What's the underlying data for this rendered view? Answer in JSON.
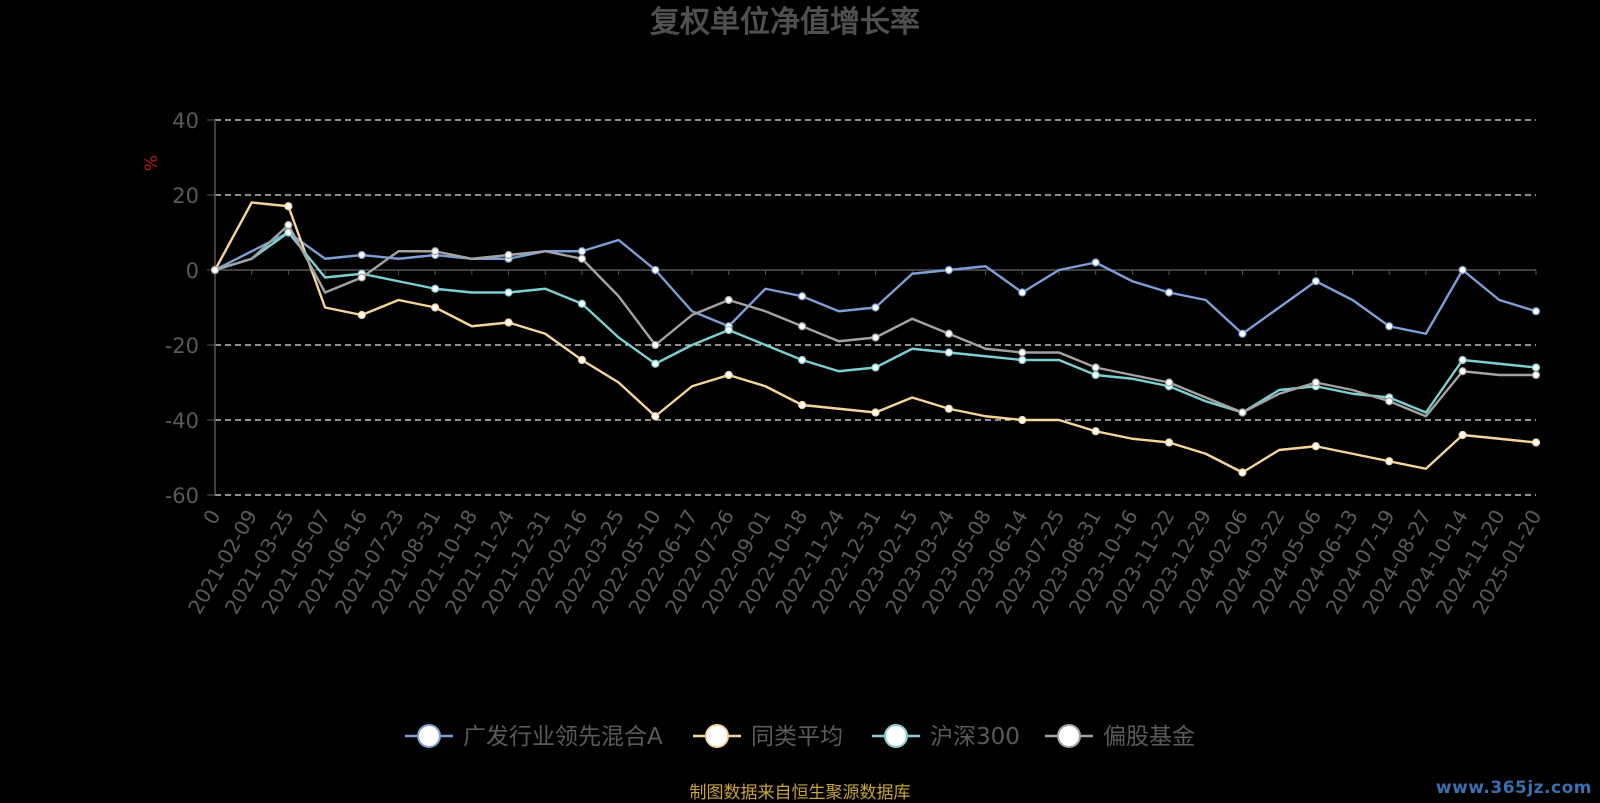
{
  "chart_data": {
    "type": "line",
    "title": "复权单位净值增长率",
    "ylabel": "%",
    "xlabel": "",
    "ylim": [
      -60,
      40
    ],
    "yticks": [
      40,
      20,
      0,
      -20,
      -40,
      -60
    ],
    "grid": true,
    "legend_position": "bottom",
    "categories": [
      "0",
      "2021-02-09",
      "2021-03-25",
      "2021-05-07",
      "2021-06-16",
      "2021-07-23",
      "2021-08-31",
      "2021-10-18",
      "2021-11-24",
      "2021-12-31",
      "2022-02-16",
      "2022-03-25",
      "2022-05-10",
      "2022-06-17",
      "2022-07-26",
      "2022-09-01",
      "2022-10-18",
      "2022-11-24",
      "2022-12-31",
      "2023-02-15",
      "2023-03-24",
      "2023-05-08",
      "2023-06-14",
      "2023-07-25",
      "2023-08-31",
      "2023-10-16",
      "2023-11-22",
      "2023-12-29",
      "2024-02-06",
      "2024-03-22",
      "2024-05-06",
      "2024-06-13",
      "2024-07-19",
      "2024-08-27",
      "2024-10-14",
      "2024-11-20",
      "2025-01-20"
    ],
    "series": [
      {
        "name": "广发行业领先混合A",
        "color": "#7b9fd6",
        "values": [
          0,
          5,
          10,
          3,
          4,
          3,
          4,
          3,
          3,
          5,
          5,
          8,
          0,
          -11,
          -15,
          -5,
          -7,
          -11,
          -10,
          -1,
          0,
          1,
          -6,
          0,
          2,
          -3,
          -6,
          -8,
          -17,
          -10,
          -3,
          -8,
          -15,
          -17,
          0,
          -8,
          -11
        ]
      },
      {
        "name": "同类平均",
        "color": "#f6d59a",
        "values": [
          0,
          18,
          17,
          -10,
          -12,
          -8,
          -10,
          -15,
          -14,
          -17,
          -24,
          -30,
          -39,
          -31,
          -28,
          -31,
          -36,
          -37,
          -38,
          -34,
          -37,
          -39,
          -40,
          -40,
          -43,
          -45,
          -46,
          -49,
          -54,
          -48,
          -47,
          -49,
          -51,
          -53,
          -44,
          -45,
          -46
        ]
      },
      {
        "name": "沪深300",
        "color": "#7dcfd4",
        "values": [
          0,
          3,
          10,
          -2,
          -1,
          -3,
          -5,
          -6,
          -6,
          -5,
          -9,
          -18,
          -25,
          -20,
          -16,
          -20,
          -24,
          -27,
          -26,
          -21,
          -22,
          -23,
          -24,
          -24,
          -28,
          -29,
          -31,
          -35,
          -38,
          -32,
          -31,
          -33,
          -34,
          -38,
          -24,
          -25,
          -26
        ]
      },
      {
        "name": "偏股基金",
        "color": "#a3a3a3",
        "values": [
          0,
          3,
          12,
          -6,
          -2,
          5,
          5,
          3,
          4,
          5,
          3,
          -7,
          -20,
          -12,
          -8,
          -11,
          -15,
          -19,
          -18,
          -13,
          -17,
          -21,
          -22,
          -22,
          -26,
          -28,
          -30,
          -34,
          -38,
          -33,
          -30,
          -32,
          -35,
          -39,
          -27,
          -28,
          -28
        ]
      }
    ]
  },
  "source_note": "制图数据来自恒生聚源数据库",
  "watermark": "www.365jz.com"
}
